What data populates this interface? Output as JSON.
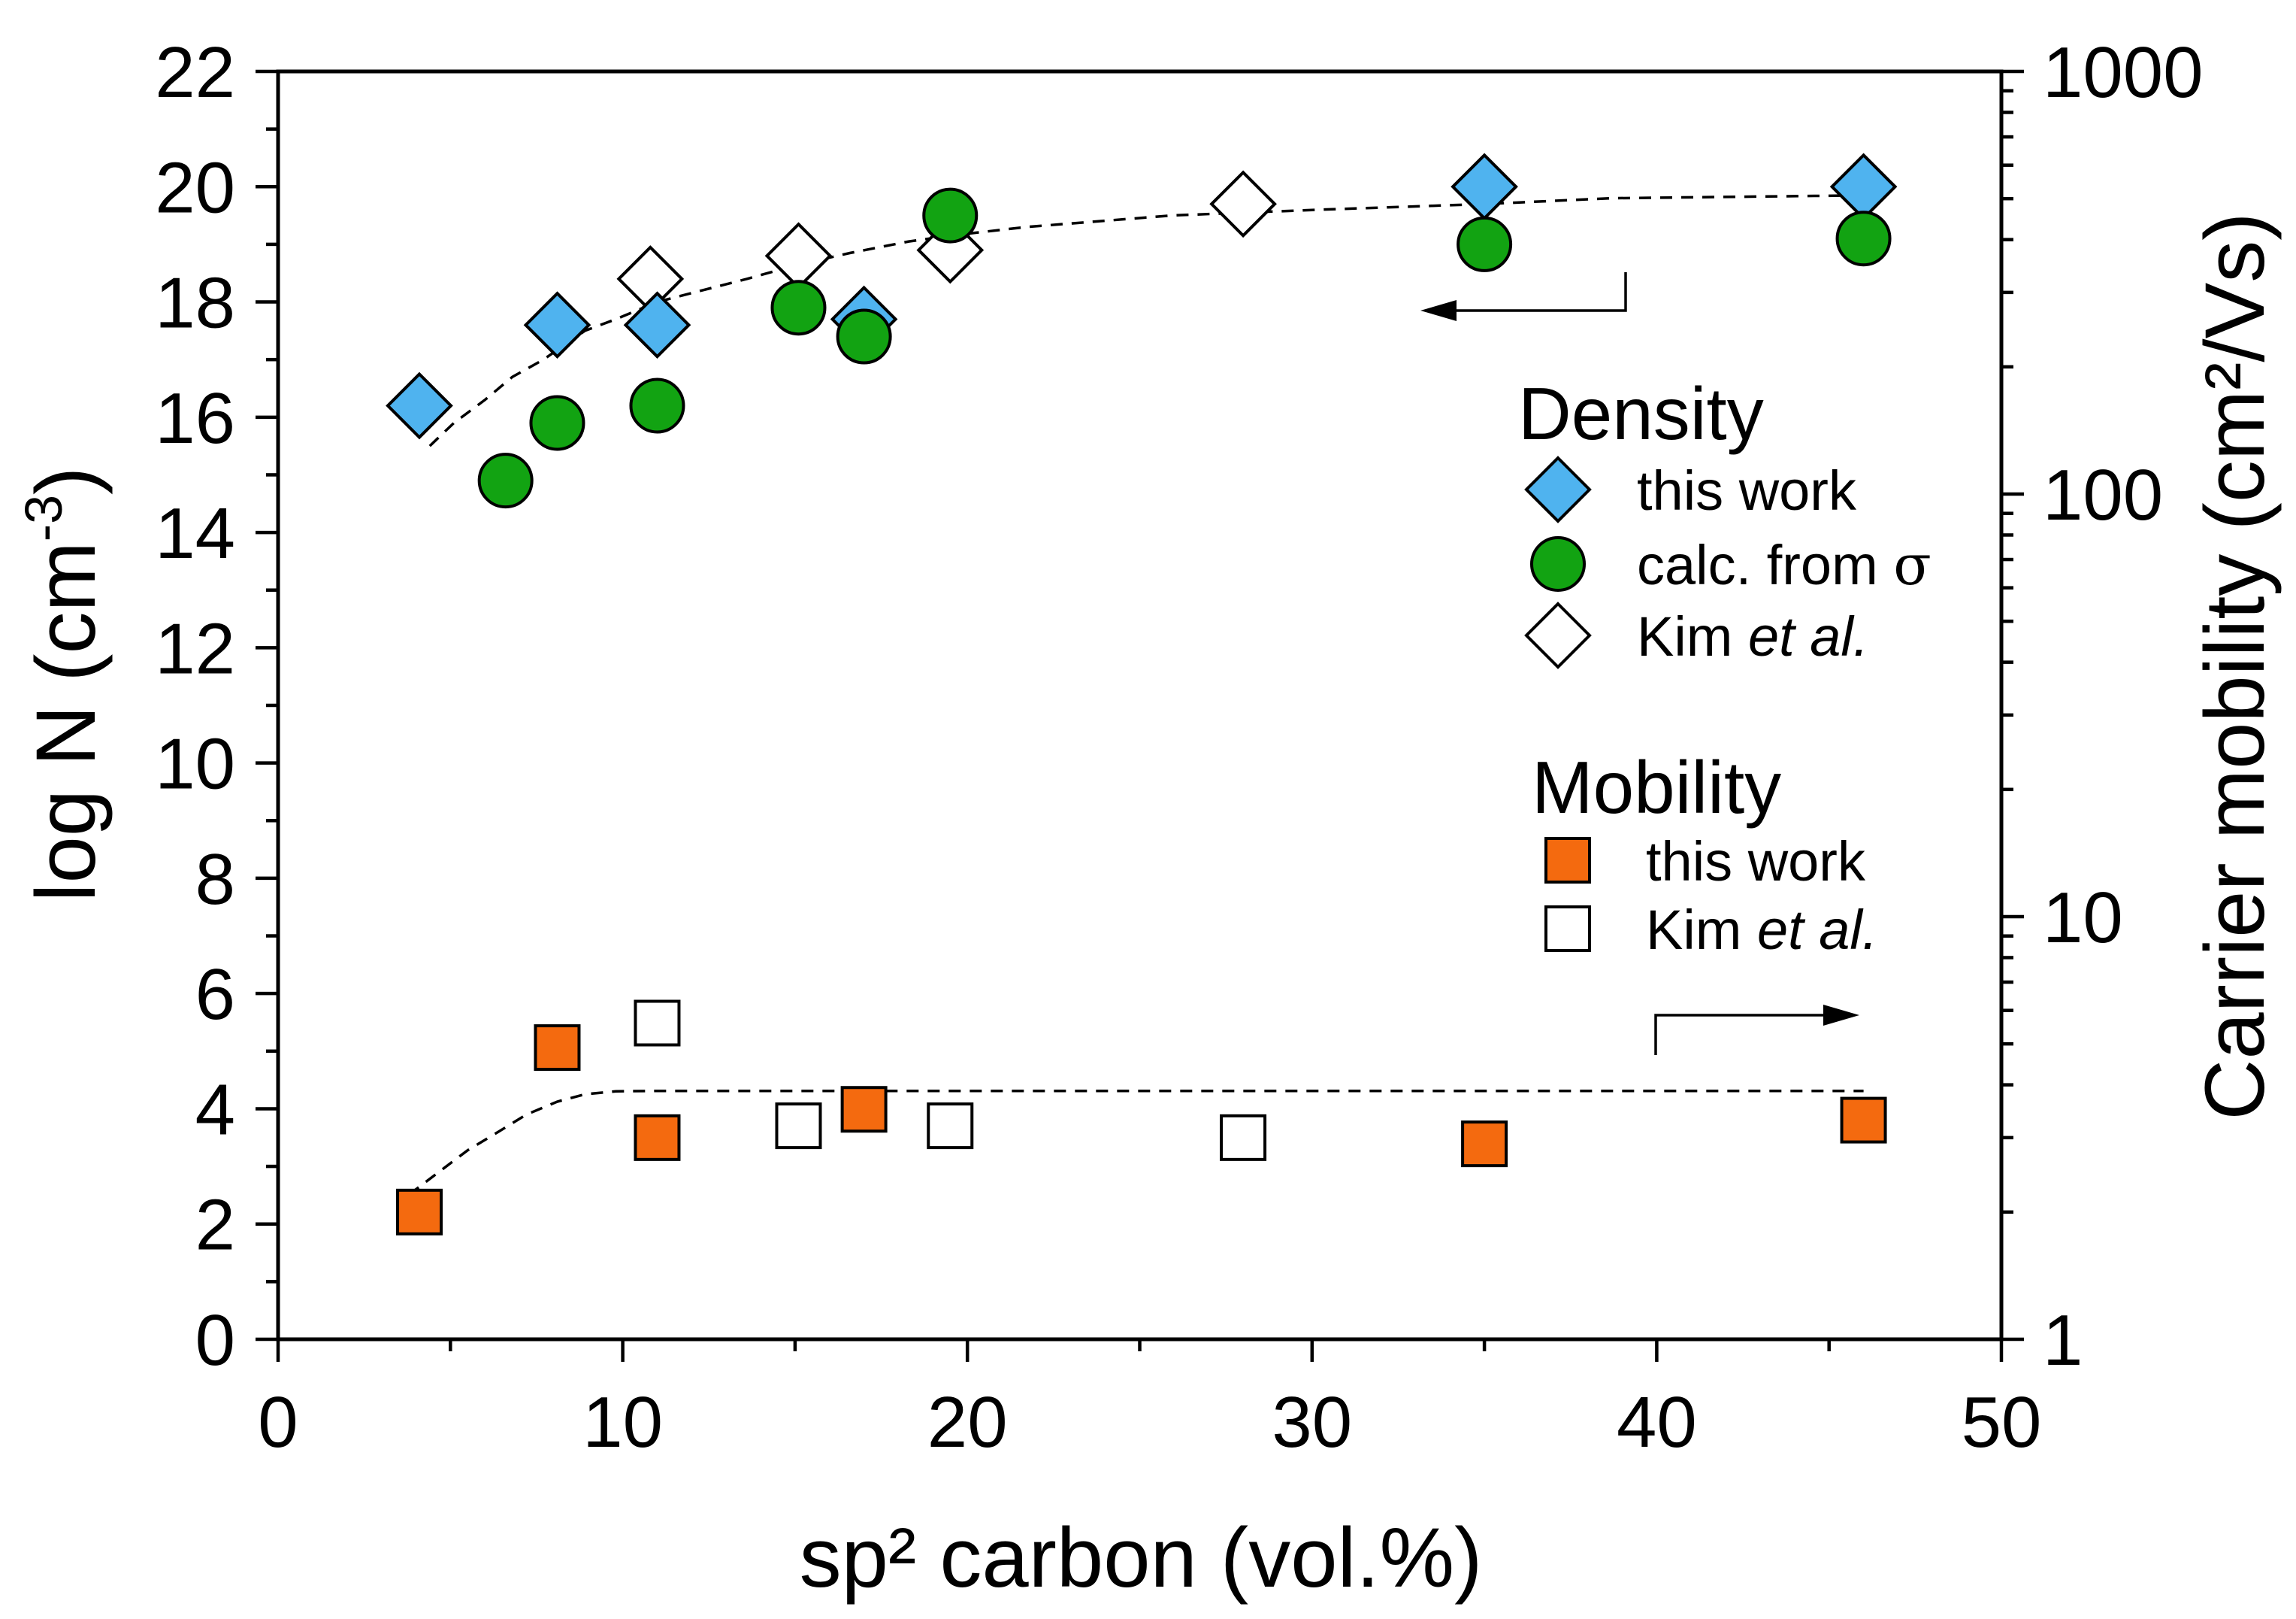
{
  "chart_data": {
    "type": "scatter",
    "xlabel": "sp² carbon (vol.%)",
    "ylabel_left": {
      "main": "log N (cm",
      "sup": "-3",
      "close": ")"
    },
    "ylabel_right": "Carrier mobility (cm²/Vs)",
    "xlim": [
      0,
      50
    ],
    "ylim_left": [
      0,
      22
    ],
    "ylim_right": [
      1,
      1000
    ],
    "yscale_right": "log",
    "xticks": [
      0,
      10,
      20,
      30,
      40,
      50
    ],
    "x_minor_step": 5,
    "yticks_left": [
      0,
      2,
      4,
      6,
      8,
      10,
      12,
      14,
      16,
      18,
      20,
      22
    ],
    "y_left_minor_step": 1,
    "yticks_right": [
      1,
      10,
      100,
      1000
    ],
    "grid": false,
    "legend_placement": "right",
    "legend_groups": [
      {
        "title": "Density",
        "axis": "left",
        "series": [
          {
            "label": "this work",
            "marker": "diamond",
            "fill": "#4fb3ef",
            "x": [
              4.1,
              8.1,
              11.0,
              17.0,
              35.0,
              46.0
            ],
            "y": [
              16.2,
              17.6,
              17.6,
              17.7,
              20.0,
              20.0
            ]
          },
          {
            "label": "calc. from ",
            "label_symbol": "σ",
            "marker": "circle",
            "fill": "#12a312",
            "x": [
              6.6,
              8.1,
              11.0,
              15.1,
              17.0,
              19.5,
              35.0,
              46.0
            ],
            "y": [
              14.9,
              15.9,
              16.2,
              17.9,
              17.4,
              19.5,
              19.0,
              19.1
            ]
          },
          {
            "label": "Kim ",
            "label_italic": "et al.",
            "marker": "diamond",
            "fill": "#ffffff",
            "x": [
              10.8,
              15.1,
              19.5,
              28.0
            ],
            "y": [
              18.4,
              18.8,
              18.9,
              19.7
            ]
          }
        ]
      },
      {
        "title": "Mobility",
        "axis": "right",
        "series": [
          {
            "label": "this work",
            "marker": "square",
            "fill": "#f46a0f",
            "x": [
              4.1,
              8.1,
              11.0,
              17.0,
              35.0,
              46.0
            ],
            "y": [
              2.0,
              4.9,
              3.0,
              3.5,
              2.9,
              3.3
            ]
          },
          {
            "label": "Kim ",
            "label_italic": "et al.",
            "marker": "square",
            "fill": "#ffffff",
            "x": [
              11.0,
              15.1,
              19.5,
              28.0
            ],
            "y": [
              5.6,
              3.2,
              3.2,
              3.0
            ]
          }
        ]
      }
    ],
    "fits": [
      {
        "axis": "left",
        "x": [
          4.4,
          5.1,
          6.0,
          6.8,
          7.7,
          8.9,
          9.8,
          11.0,
          12.3,
          13.6,
          15.1,
          16.6,
          18.3,
          19.5,
          21.7,
          23.8,
          25.9,
          28.0,
          30.2,
          35.0,
          38.7,
          46.0
        ],
        "y": [
          15.5,
          15.9,
          16.3,
          16.7,
          17.0,
          17.5,
          17.7,
          18.0,
          18.2,
          18.4,
          18.65,
          18.85,
          19.05,
          19.15,
          19.3,
          19.4,
          19.5,
          19.55,
          19.6,
          19.7,
          19.8,
          19.85
        ]
      },
      {
        "axis": "right",
        "x": [
          3.8,
          4.7,
          5.5,
          6.4,
          7.2,
          8.1,
          8.9,
          9.8,
          11.0,
          46.0
        ],
        "y": [
          2.2,
          2.5,
          2.8,
          3.1,
          3.4,
          3.65,
          3.8,
          3.86,
          3.87,
          3.87
        ]
      }
    ]
  }
}
